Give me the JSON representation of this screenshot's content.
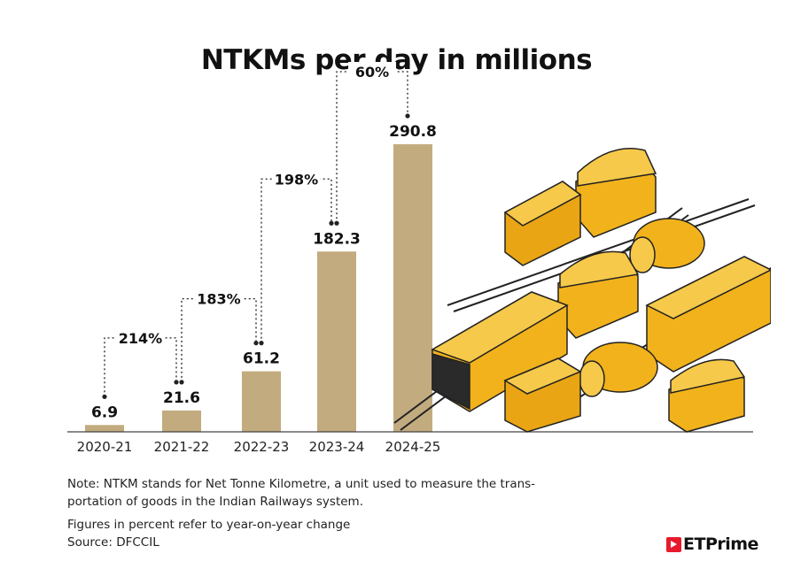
{
  "chart_data": {
    "type": "bar",
    "title": "NTKMs per day in millions",
    "categories": [
      "2020-21",
      "2021-22",
      "2022-23",
      "2023-24",
      "2024-25"
    ],
    "values": [
      6.9,
      21.6,
      61.2,
      182.3,
      290.8
    ],
    "value_labels": [
      "6.9",
      "21.6",
      "61.2",
      "182.3",
      "290.8"
    ],
    "yoy_change": [
      "214%",
      "183%",
      "198%",
      "60%"
    ],
    "bar_color": "#c2ab7e",
    "ylim": [
      0,
      290.8
    ],
    "grid": false
  },
  "notes": {
    "note": "Note: NTKM stands for Net Tonne Kilometre, a unit used to measure the trans-portation of goods in the Indian Railways system.",
    "figures": "Figures in percent refer to year-on-year change",
    "source": "Source: DFCCIL"
  },
  "brand": {
    "name": "ETPrime",
    "color": "#e8192c"
  },
  "illustration": {
    "icon": "freight-train-illustration",
    "accent": "#f2b21b"
  }
}
